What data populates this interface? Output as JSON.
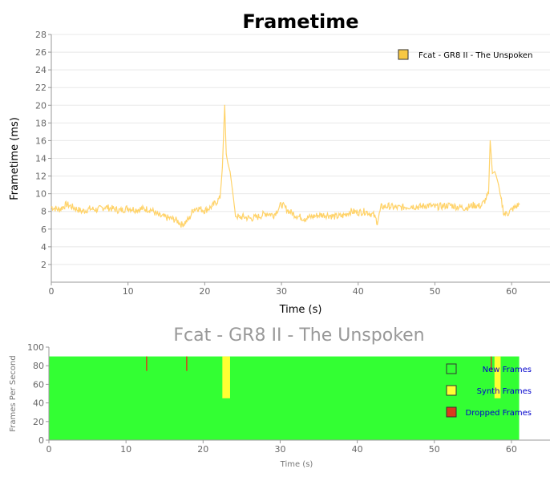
{
  "chart_data": [
    {
      "type": "line",
      "title": "Frametime",
      "xlabel": "Time (s)",
      "ylabel": "Frametime (ms)",
      "xlim": [
        0,
        65
      ],
      "ylim": [
        0,
        28
      ],
      "xticks": [
        "0",
        "10",
        "20",
        "30",
        "40",
        "50",
        "60"
      ],
      "yticks": [
        "2",
        "4",
        "6",
        "8",
        "10",
        "12",
        "14",
        "16",
        "18",
        "20",
        "22",
        "24",
        "26",
        "28"
      ],
      "grid": "horizontal",
      "legend_position": "top-right",
      "colors": {
        "line": "#ffd36a",
        "legend_fill": "#f7c843",
        "grid": "#e8e8e8"
      },
      "series": [
        {
          "name": "Fcat - GR8 II - The Unspoken",
          "x": [
            0,
            1,
            2,
            3,
            4,
            5,
            6,
            7,
            8,
            9,
            10,
            11,
            12,
            13,
            14,
            15,
            16,
            16.5,
            17,
            17.5,
            18,
            18.5,
            19,
            20,
            21,
            22,
            22.3,
            22.6,
            22.8,
            23,
            23.3,
            23.6,
            24,
            24.5,
            25,
            26,
            27,
            28,
            29,
            30,
            31,
            32,
            33,
            34,
            35,
            36,
            37,
            38,
            39,
            40,
            41,
            42,
            42.5,
            43,
            44,
            45,
            46,
            47,
            48,
            49,
            50,
            51,
            52,
            53,
            54,
            55,
            56,
            56.5,
            57,
            57.2,
            57.5,
            57.8,
            58,
            58.3,
            58.6,
            59,
            59.5,
            60,
            60.5,
            61
          ],
          "y": [
            8.5,
            8.2,
            8.8,
            8.4,
            8.0,
            8.3,
            8.2,
            8.5,
            8.3,
            8.1,
            8.4,
            8.2,
            8.3,
            8.2,
            7.5,
            7.3,
            7.1,
            6.9,
            6.5,
            6.8,
            7.2,
            8.2,
            8.4,
            8.1,
            8.6,
            9.5,
            13.0,
            20.0,
            14.5,
            13.5,
            12.5,
            10.5,
            7.6,
            7.3,
            7.4,
            7.2,
            7.4,
            7.8,
            7.6,
            8.8,
            8.0,
            7.5,
            7.2,
            7.4,
            7.6,
            7.6,
            7.4,
            7.5,
            8.0,
            7.9,
            8.0,
            7.6,
            6.8,
            8.5,
            8.6,
            8.4,
            8.5,
            8.6,
            8.5,
            8.7,
            8.5,
            8.6,
            8.7,
            8.5,
            8.4,
            8.7,
            8.6,
            9.2,
            10.0,
            16.0,
            12.3,
            12.5,
            12.0,
            11.0,
            9.5,
            7.7,
            7.8,
            8.2,
            8.5,
            8.8
          ]
        }
      ]
    },
    {
      "type": "area",
      "title": "Fcat - GR8 II - The Unspoken",
      "xlabel": "Time (s)",
      "ylabel": "Frames Per Second",
      "xlim": [
        0,
        65
      ],
      "ylim": [
        0,
        100
      ],
      "xticks": [
        "0",
        "10",
        "20",
        "30",
        "40",
        "50",
        "60"
      ],
      "yticks": [
        "0",
        "20",
        "40",
        "60",
        "80",
        "100"
      ],
      "legend_position": "right",
      "colors": {
        "new": "#33ff33",
        "synth": "#ffff33",
        "dropped": "#d93a1e"
      },
      "series": [
        {
          "name": "New Frames",
          "value": 90,
          "range": [
            0,
            61
          ]
        },
        {
          "name": "Synth Frames",
          "segments": [
            [
              22.5,
              23.5,
              45,
              90
            ],
            [
              57.8,
              58.6,
              45,
              90
            ]
          ]
        },
        {
          "name": "Dropped Frames",
          "markers": [
            12.6,
            17.8,
            57.3
          ]
        }
      ]
    }
  ]
}
